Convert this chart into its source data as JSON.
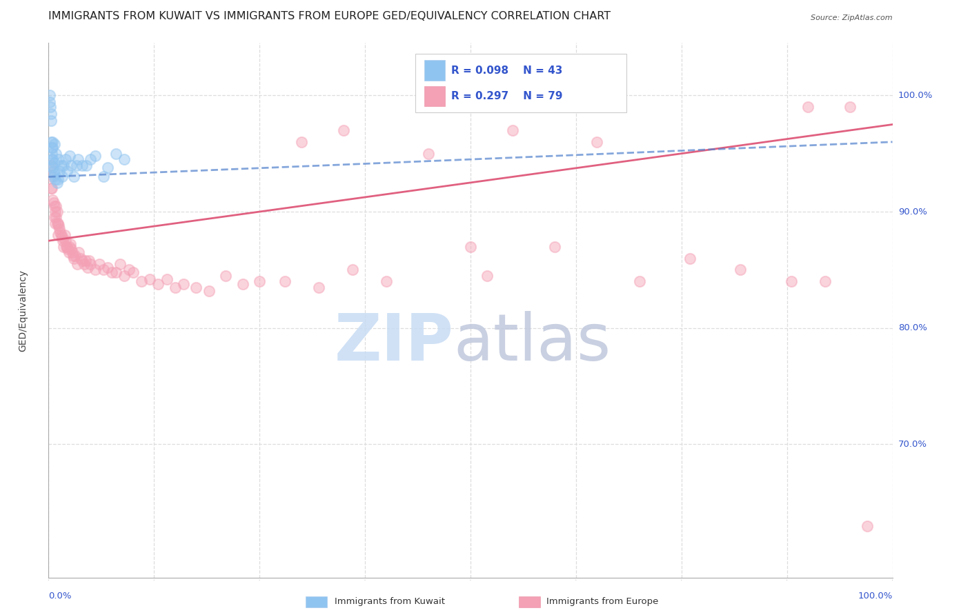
{
  "title": "IMMIGRANTS FROM KUWAIT VS IMMIGRANTS FROM EUROPE GED/EQUIVALENCY CORRELATION CHART",
  "source": "Source: ZipAtlas.com",
  "ylabel": "GED/Equivalency",
  "ytick_labels": [
    "70.0%",
    "80.0%",
    "90.0%",
    "100.0%"
  ],
  "ytick_values": [
    0.7,
    0.8,
    0.9,
    1.0
  ],
  "xlim": [
    0.0,
    1.0
  ],
  "ylim": [
    0.585,
    1.045
  ],
  "legend_blue_r": "R = 0.098",
  "legend_blue_n": "N = 43",
  "legend_pink_r": "R = 0.297",
  "legend_pink_n": "N = 79",
  "blue_color": "#90C4F0",
  "pink_color": "#F4A0B5",
  "blue_line_color": "#5080CC",
  "pink_line_color": "#E06080",
  "legend_text_color": "#3355CC",
  "watermark_zip_color": "#C8DCF4",
  "watermark_atlas_color": "#C0C8DC",
  "grid_color": "#DDDDDD",
  "background_color": "#FFFFFF",
  "title_fontsize": 11.5,
  "axis_label_fontsize": 10,
  "tick_fontsize": 9.5,
  "marker_size": 120,
  "marker_alpha": 0.45,
  "blue_x": [
    0.001,
    0.001,
    0.002,
    0.003,
    0.003,
    0.003,
    0.004,
    0.004,
    0.004,
    0.004,
    0.005,
    0.005,
    0.005,
    0.005,
    0.006,
    0.006,
    0.007,
    0.007,
    0.007,
    0.008,
    0.009,
    0.01,
    0.011,
    0.012,
    0.013,
    0.015,
    0.016,
    0.018,
    0.02,
    0.022,
    0.025,
    0.027,
    0.03,
    0.033,
    0.035,
    0.04,
    0.045,
    0.05,
    0.055,
    0.065,
    0.07,
    0.08,
    0.09
  ],
  "blue_y": [
    1.0,
    0.994,
    0.99,
    0.984,
    0.978,
    0.96,
    0.955,
    0.95,
    0.945,
    0.94,
    0.96,
    0.955,
    0.945,
    0.938,
    0.935,
    0.93,
    0.958,
    0.942,
    0.932,
    0.928,
    0.95,
    0.925,
    0.928,
    0.945,
    0.935,
    0.94,
    0.93,
    0.94,
    0.945,
    0.935,
    0.948,
    0.94,
    0.93,
    0.94,
    0.945,
    0.94,
    0.94,
    0.945,
    0.948,
    0.93,
    0.938,
    0.95,
    0.945
  ],
  "pink_x": [
    0.002,
    0.003,
    0.003,
    0.004,
    0.005,
    0.006,
    0.007,
    0.007,
    0.008,
    0.008,
    0.009,
    0.009,
    0.01,
    0.01,
    0.011,
    0.011,
    0.012,
    0.013,
    0.014,
    0.015,
    0.016,
    0.017,
    0.018,
    0.019,
    0.02,
    0.021,
    0.022,
    0.023,
    0.024,
    0.025,
    0.026,
    0.027,
    0.028,
    0.029,
    0.03,
    0.032,
    0.034,
    0.036,
    0.038,
    0.04,
    0.042,
    0.044,
    0.046,
    0.048,
    0.05,
    0.055,
    0.06,
    0.065,
    0.07,
    0.075,
    0.08,
    0.085,
    0.09,
    0.095,
    0.1,
    0.11,
    0.12,
    0.13,
    0.14,
    0.15,
    0.16,
    0.175,
    0.19,
    0.21,
    0.23,
    0.25,
    0.28,
    0.32,
    0.36,
    0.4,
    0.5,
    0.52,
    0.6,
    0.7,
    0.76,
    0.82,
    0.88,
    0.92,
    0.97
  ],
  "pink_y": [
    0.94,
    0.93,
    0.92,
    0.92,
    0.91,
    0.908,
    0.905,
    0.895,
    0.9,
    0.89,
    0.905,
    0.895,
    0.9,
    0.89,
    0.89,
    0.88,
    0.888,
    0.885,
    0.882,
    0.88,
    0.878,
    0.875,
    0.87,
    0.88,
    0.875,
    0.87,
    0.87,
    0.868,
    0.865,
    0.87,
    0.872,
    0.868,
    0.865,
    0.862,
    0.86,
    0.862,
    0.855,
    0.865,
    0.86,
    0.858,
    0.855,
    0.858,
    0.852,
    0.858,
    0.855,
    0.85,
    0.855,
    0.85,
    0.852,
    0.848,
    0.848,
    0.855,
    0.845,
    0.85,
    0.848,
    0.84,
    0.842,
    0.838,
    0.842,
    0.835,
    0.838,
    0.835,
    0.832,
    0.845,
    0.838,
    0.84,
    0.84,
    0.835,
    0.85,
    0.84,
    0.87,
    0.845,
    0.87,
    0.84,
    0.86,
    0.85,
    0.84,
    0.84,
    0.63
  ],
  "pink_high_x": [
    0.3,
    0.35,
    0.45,
    0.55,
    0.65,
    0.9,
    0.95
  ],
  "pink_high_y": [
    0.96,
    0.97,
    0.95,
    0.97,
    0.96,
    0.99,
    0.99
  ],
  "blue_trendline_x": [
    0.0,
    1.0
  ],
  "blue_trendline_y": [
    0.93,
    0.96
  ],
  "pink_trendline_x": [
    0.0,
    1.0
  ],
  "pink_trendline_y": [
    0.875,
    0.975
  ]
}
